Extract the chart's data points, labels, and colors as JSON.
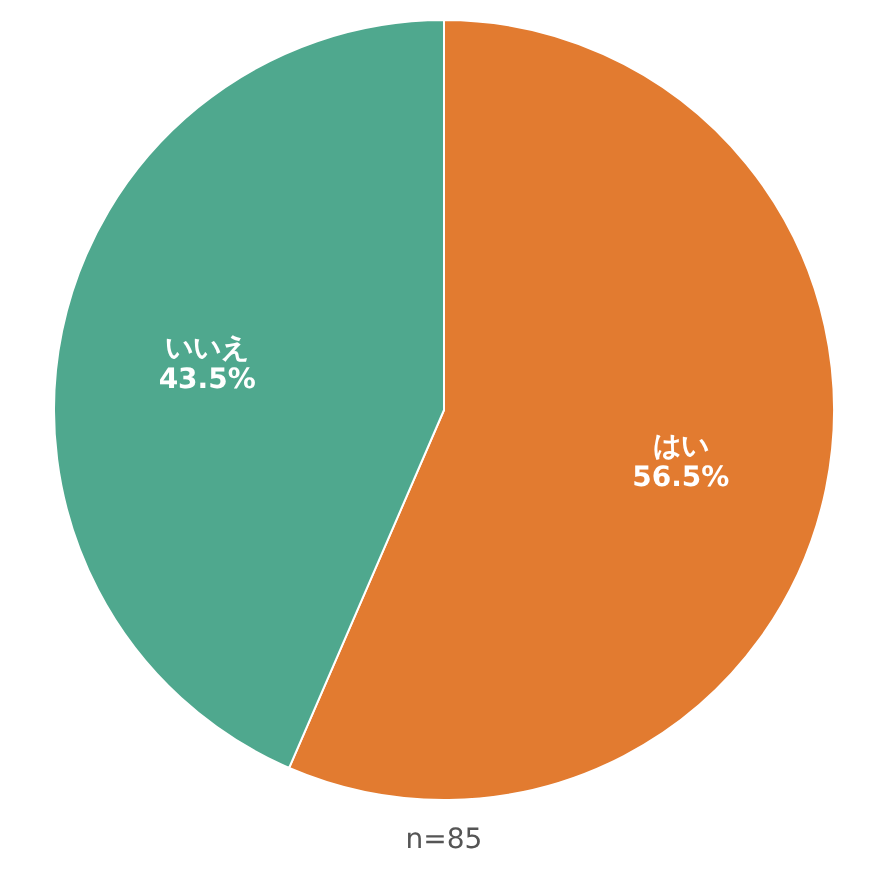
{
  "chart_data": {
    "type": "pie",
    "categories": [
      "はい",
      "いいえ"
    ],
    "values": [
      56.5,
      43.5
    ],
    "colors": [
      "#e27b30",
      "#4fa88e"
    ],
    "value_labels": [
      "56.5%",
      "43.5%"
    ],
    "annotations": [
      "n=85"
    ]
  }
}
